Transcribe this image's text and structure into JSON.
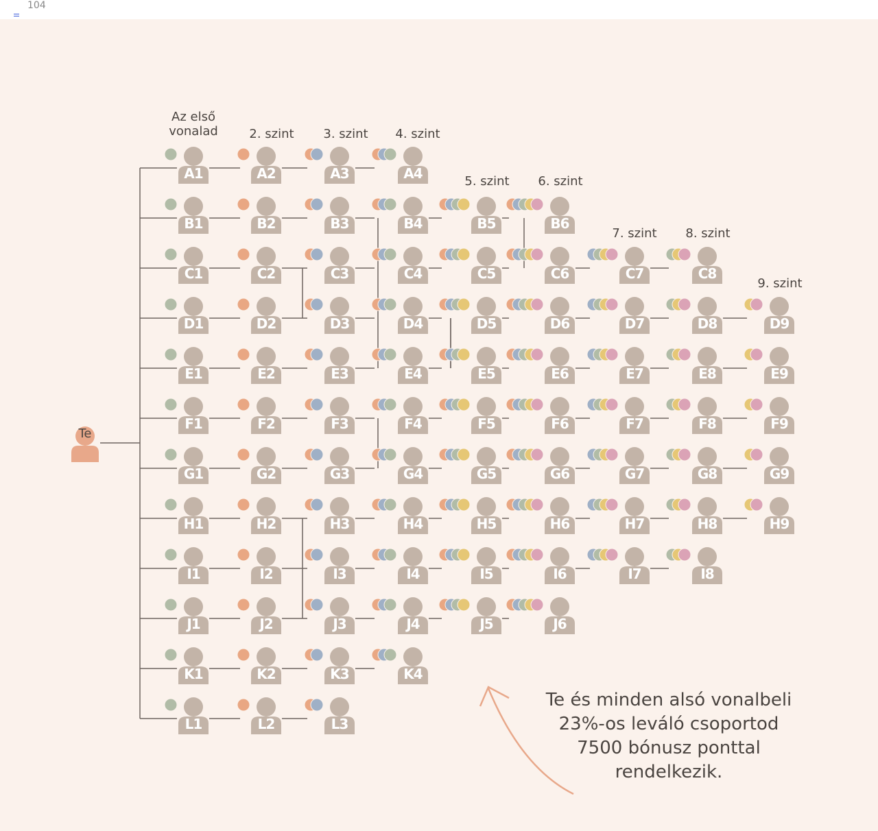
{
  "page": {
    "number": "104"
  },
  "you_label": "Te",
  "level_headers": [
    {
      "id": "l1",
      "line1": "Az első",
      "line2": "vonalad"
    },
    {
      "id": "l2",
      "line1": "2. szint"
    },
    {
      "id": "l3",
      "line1": "3. szint"
    },
    {
      "id": "l4",
      "line1": "4. szint"
    },
    {
      "id": "l5",
      "line1": "5. szint"
    },
    {
      "id": "l6",
      "line1": "6. szint"
    },
    {
      "id": "l7",
      "line1": "7. szint"
    },
    {
      "id": "l8",
      "line1": "8. szint"
    },
    {
      "id": "l9",
      "line1": "9. szint"
    }
  ],
  "rows": [
    {
      "letter": "A",
      "max": 4
    },
    {
      "letter": "B",
      "max": 6
    },
    {
      "letter": "C",
      "max": 8
    },
    {
      "letter": "D",
      "max": 9
    },
    {
      "letter": "E",
      "max": 9
    },
    {
      "letter": "F",
      "max": 9
    },
    {
      "letter": "G",
      "max": 9
    },
    {
      "letter": "H",
      "max": 9
    },
    {
      "letter": "I",
      "max": 8
    },
    {
      "letter": "J",
      "max": 6
    },
    {
      "letter": "K",
      "max": 4
    },
    {
      "letter": "L",
      "max": 3
    }
  ],
  "note_lines": [
    "Te és minden alsó vonalbeli",
    "23%-os leváló csoportod",
    "7500 bónusz ponttal",
    "rendelkezik."
  ],
  "colors": {
    "background": "#fbf2ec",
    "person": "#c3b4a8",
    "you": "#e8a88a",
    "line": "#6e6560",
    "dot_green": "#b1bca7",
    "dot_orange": "#e9a783",
    "dot_blue": "#9fb0c6",
    "dot_yellow": "#e6c775",
    "dot_pink": "#dba3b6",
    "arrow": "#e8a88a"
  }
}
